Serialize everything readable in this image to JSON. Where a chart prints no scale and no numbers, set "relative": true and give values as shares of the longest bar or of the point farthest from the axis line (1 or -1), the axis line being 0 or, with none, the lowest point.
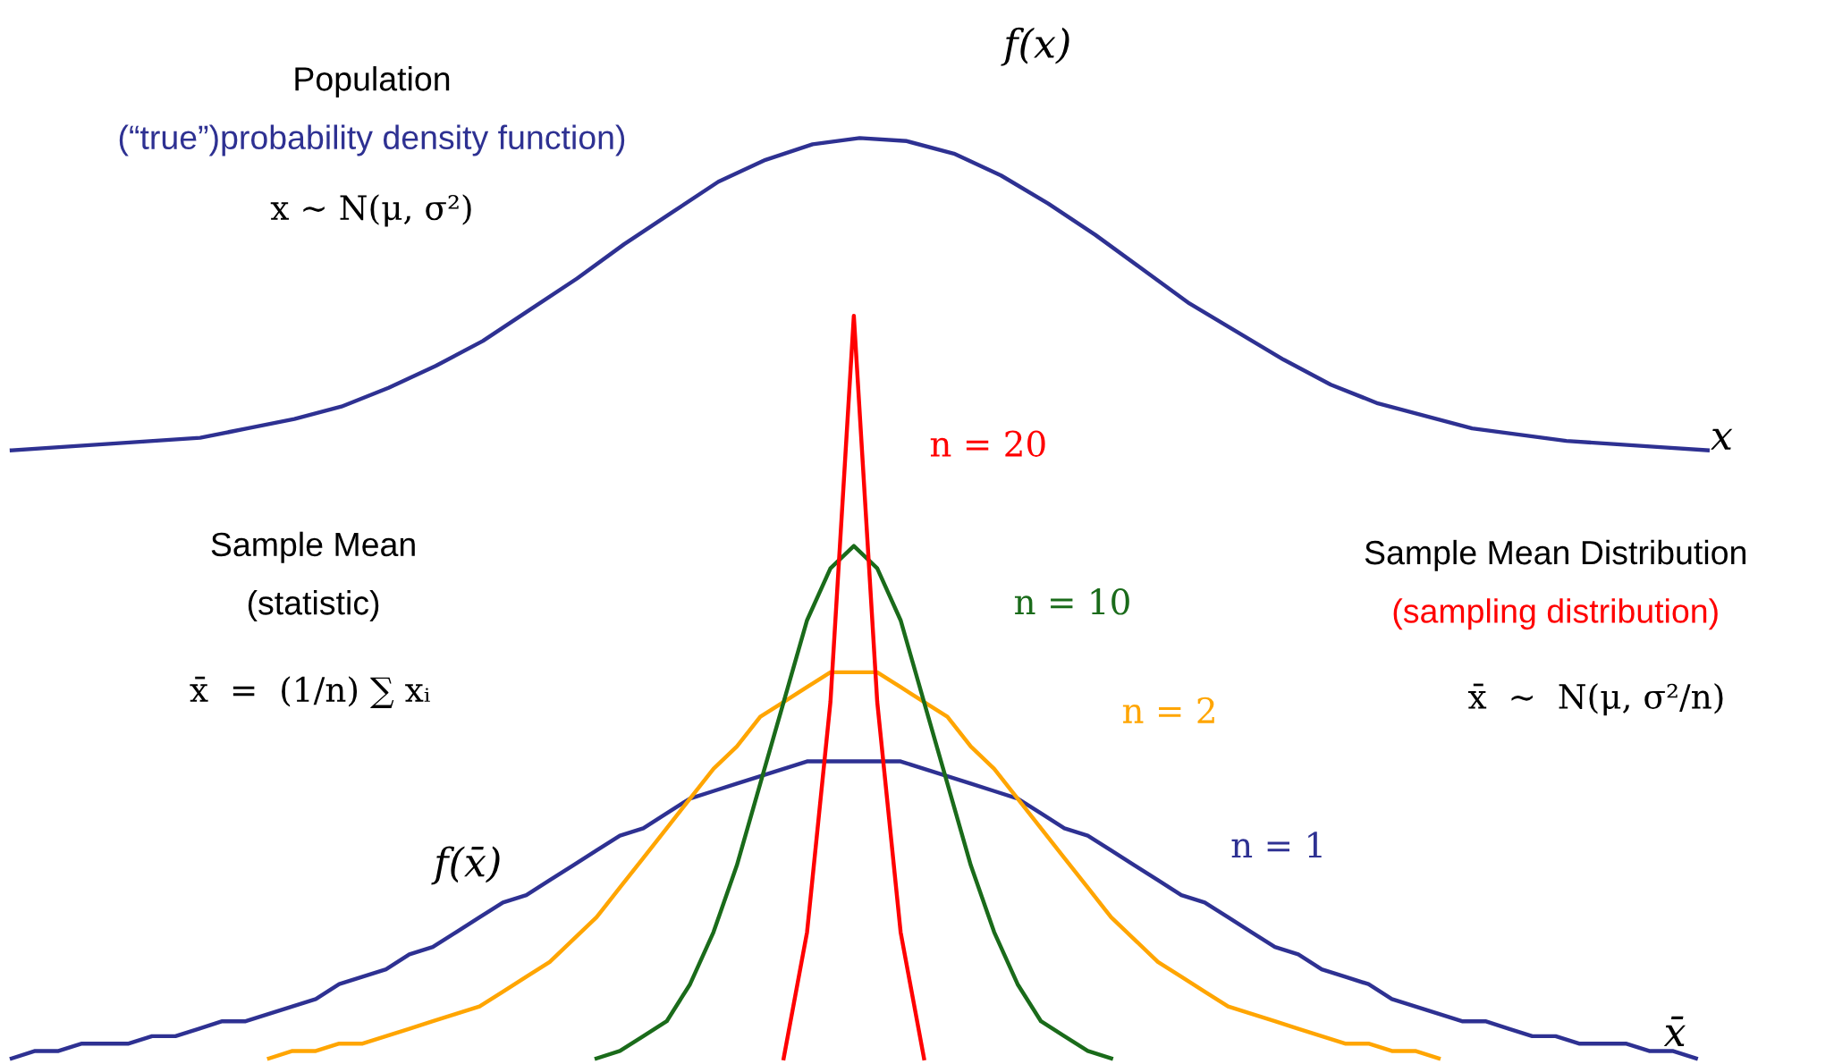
{
  "chart_data": [
    {
      "type": "line",
      "relative": true,
      "tick_labels": false,
      "title": "Population",
      "subtitle": "(“true”)probability density function)",
      "xlabel": "x",
      "ylabel": "f(x)",
      "annotations": [
        "x ∼ N(μ, σ²)"
      ],
      "categories": [
        null,
        null,
        null,
        null,
        null,
        null,
        null,
        null,
        null,
        null,
        null,
        null,
        null,
        null,
        null,
        null,
        null,
        null,
        null,
        null,
        null,
        null,
        null,
        null,
        null,
        null,
        null,
        null,
        null,
        null,
        null,
        null,
        null,
        null,
        null,
        null,
        null
      ],
      "series": [
        {
          "color": "#2e3192",
          "values": [
            0,
            0.01,
            0.02,
            0.03,
            0.04,
            0.07,
            0.1,
            0.14,
            0.2,
            0.27,
            0.35,
            0.45,
            0.55,
            0.66,
            0.76,
            0.86,
            0.93,
            0.98,
            1.0,
            0.99,
            0.95,
            0.88,
            0.79,
            0.69,
            0.58,
            0.47,
            0.38,
            0.29,
            0.21,
            0.15,
            0.11,
            0.07,
            0.05,
            0.03,
            0.02,
            0.01,
            0
          ]
        }
      ]
    },
    {
      "type": "line",
      "relative": true,
      "tick_labels": false,
      "title": "Sample Mean Distribution",
      "subtitle": "(sampling distribution)",
      "xlabel": "x̄",
      "ylabel": "f(x̄)",
      "annotations": [
        "Sample Mean",
        "(statistic)",
        "x̄  =  (1/n) ∑ xᵢ",
        "x̄  ∼  N(μ, σ²/n)"
      ],
      "categories": [
        null,
        null,
        null,
        null,
        null,
        null,
        null,
        null,
        null,
        null,
        null,
        null,
        null,
        null,
        null,
        null,
        null,
        null,
        null,
        null,
        null,
        null,
        null,
        null,
        null,
        null,
        null,
        null,
        null,
        null,
        null,
        null,
        null,
        null,
        null,
        null,
        null,
        null,
        null,
        null,
        null,
        null,
        null,
        null,
        null,
        null,
        null,
        null,
        null,
        null,
        null,
        null,
        null,
        null,
        null,
        null,
        null,
        null,
        null,
        null,
        null,
        null,
        null,
        null,
        null,
        null,
        null,
        null,
        null,
        null,
        null,
        null,
        null
      ],
      "series": [
        {
          "name": "n = 1",
          "color": "#2e3192",
          "values": [
            0,
            0.01,
            0.01,
            0.02,
            0.02,
            0.02,
            0.03,
            0.03,
            0.04,
            0.05,
            0.05,
            0.06,
            0.07,
            0.08,
            0.1,
            0.11,
            0.12,
            0.14,
            0.15,
            0.17,
            0.19,
            0.21,
            0.22,
            0.24,
            0.26,
            0.28,
            0.3,
            0.31,
            0.33,
            0.35,
            0.36,
            0.37,
            0.38,
            0.39,
            0.4,
            0.4,
            0.4,
            0.4,
            0.4,
            0.39,
            0.38,
            0.37,
            0.36,
            0.35,
            0.33,
            0.31,
            0.3,
            0.28,
            0.26,
            0.24,
            0.22,
            0.21,
            0.19,
            0.17,
            0.15,
            0.14,
            0.12,
            0.11,
            0.1,
            0.08,
            0.07,
            0.06,
            0.05,
            0.05,
            0.04,
            0.03,
            0.03,
            0.02,
            0.02,
            0.02,
            0.01,
            0.01,
            0
          ]
        },
        {
          "name": "n = 2",
          "color": "#ffa500",
          "values": [
            null,
            null,
            null,
            null,
            null,
            null,
            null,
            null,
            null,
            null,
            null,
            0,
            0.01,
            0.01,
            0.02,
            0.02,
            0.03,
            0.04,
            0.05,
            0.06,
            0.07,
            0.09,
            0.11,
            0.13,
            0.16,
            0.19,
            0.23,
            0.27,
            0.31,
            0.35,
            0.39,
            0.42,
            0.46,
            0.48,
            0.5,
            0.52,
            0.52,
            0.52,
            0.5,
            0.48,
            0.46,
            0.42,
            0.39,
            0.35,
            0.31,
            0.27,
            0.23,
            0.19,
            0.16,
            0.13,
            0.11,
            0.09,
            0.07,
            0.06,
            0.05,
            0.04,
            0.03,
            0.02,
            0.02,
            0.01,
            0.01,
            0,
            null,
            null,
            null,
            null,
            null,
            null,
            null,
            null,
            null,
            null,
            null
          ]
        },
        {
          "name": "n = 10",
          "color": "#1a6b1a",
          "values": [
            null,
            null,
            null,
            null,
            null,
            null,
            null,
            null,
            null,
            null,
            null,
            null,
            null,
            null,
            null,
            null,
            null,
            null,
            null,
            null,
            null,
            null,
            null,
            null,
            null,
            0,
            0.01,
            0.03,
            0.05,
            0.1,
            0.17,
            0.26,
            0.37,
            0.48,
            0.59,
            0.66,
            0.69,
            0.66,
            0.59,
            0.48,
            0.37,
            0.26,
            0.17,
            0.1,
            0.05,
            0.03,
            0.01,
            0,
            null,
            null,
            null,
            null,
            null,
            null,
            null,
            null,
            null,
            null,
            null,
            null,
            null,
            null,
            null,
            null,
            null,
            null,
            null,
            null,
            null,
            null,
            null,
            null,
            null
          ]
        },
        {
          "name": "n = 20",
          "color": "#ff0000",
          "values": [
            null,
            null,
            null,
            null,
            null,
            null,
            null,
            null,
            null,
            null,
            null,
            null,
            null,
            null,
            null,
            null,
            null,
            null,
            null,
            null,
            null,
            null,
            null,
            null,
            null,
            null,
            null,
            null,
            null,
            null,
            null,
            null,
            null,
            0,
            0.17,
            0.48,
            1,
            0.48,
            0.17,
            0,
            null,
            null,
            null,
            null,
            null,
            null,
            null,
            null,
            null,
            null,
            null,
            null,
            null,
            null,
            null,
            null,
            null,
            null,
            null,
            null,
            null,
            null,
            null,
            null,
            null,
            null,
            null,
            null,
            null,
            null,
            null,
            null,
            null
          ]
        }
      ]
    }
  ]
}
